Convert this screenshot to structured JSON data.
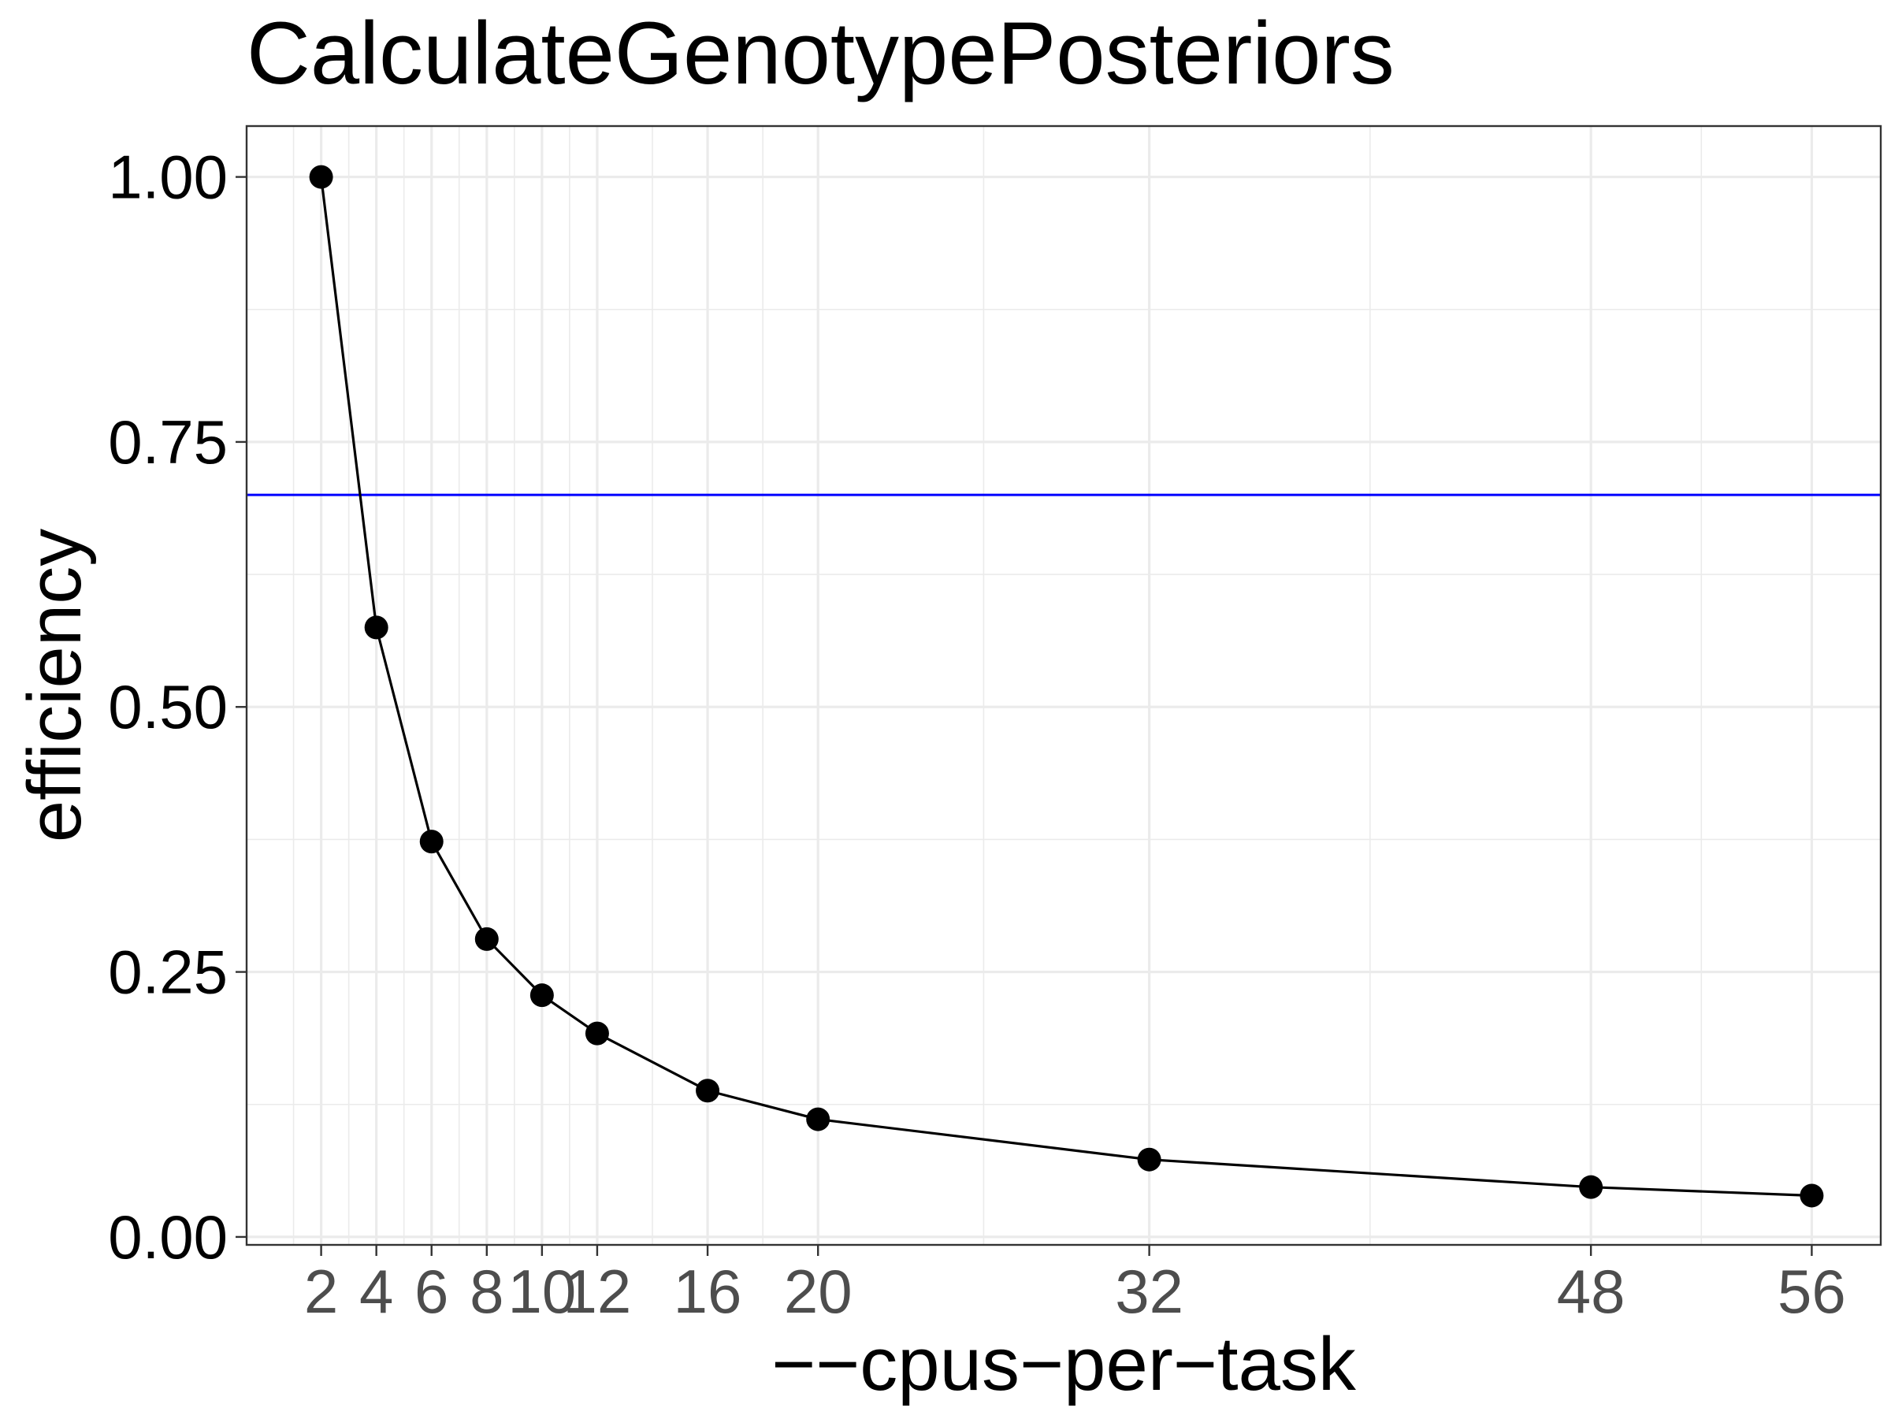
{
  "chart_data": {
    "type": "line",
    "title": "CalculateGenotypePosteriors",
    "xlabel": "−−cpus−per−task",
    "ylabel": "efficiency",
    "x": [
      2,
      4,
      6,
      8,
      10,
      12,
      16,
      20,
      32,
      48,
      56
    ],
    "series": [
      {
        "values": [
          1.0,
          0.575,
          0.373,
          0.281,
          0.228,
          0.192,
          0.138,
          0.111,
          0.073,
          0.047,
          0.039
        ]
      }
    ],
    "reference_line": {
      "y": 0.7,
      "color": "#0000ff"
    },
    "xticks": [
      2,
      4,
      6,
      8,
      10,
      12,
      16,
      20,
      32,
      48,
      56
    ],
    "xtick_labels": [
      "2",
      "4",
      "6",
      "8",
      "10",
      "12",
      "16",
      "20",
      "32",
      "48",
      "56"
    ],
    "yticks": [
      0.0,
      0.25,
      0.5,
      0.75,
      1.0
    ],
    "ytick_labels": [
      "0.00",
      "0.25",
      "0.50",
      "0.75",
      "1.00"
    ],
    "xlim": [
      -0.7,
      58.5
    ],
    "ylim": [
      -0.0075,
      1.048
    ],
    "grid": true,
    "colors": {
      "line": "#000000",
      "point": "#000000",
      "grid": "#ebebeb",
      "panel_border": "#333333"
    }
  }
}
